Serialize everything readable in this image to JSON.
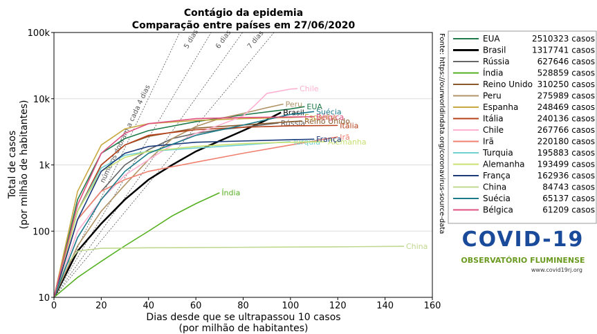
{
  "chart_data": {
    "type": "line",
    "title": [
      "Contágio da epidemia",
      "Comparação entre países em 27/06/2020"
    ],
    "x_label": [
      "Dias desde que se ultrapassou 10 casos",
      "(por milhão de habitantes)"
    ],
    "y_label": [
      "Total de casos",
      "(por milhão de habitantes)"
    ],
    "y_scale": "log",
    "grid": true,
    "xlim": [
      0,
      160
    ],
    "ylim": [
      10,
      100000
    ],
    "xticks": [
      0,
      20,
      40,
      60,
      80,
      100,
      120,
      140,
      160
    ],
    "yticks": [
      10,
      100,
      {
        "value": 1000,
        "label": "1k"
      },
      {
        "value": 10000,
        "label": "10k"
      },
      {
        "value": 100000,
        "label": "100k"
      }
    ],
    "source": "Fonte: https://ourworldindata.org/coronavirus-source-data",
    "doubling_lines": [
      {
        "days": 4,
        "label": "números dobram a cada 4 dias"
      },
      {
        "days": 5,
        "label": "5 dias"
      },
      {
        "days": 6,
        "label": "6 dias"
      },
      {
        "days": 7,
        "label": "7 dias"
      }
    ],
    "series": [
      {
        "name": "EUA",
        "cases": "2510323 casos",
        "color": "#1f7a4a",
        "x": [
          0,
          10,
          20,
          30,
          40,
          60,
          80,
          100,
          106
        ],
        "values": [
          10,
          300,
          1500,
          2500,
          3300,
          4500,
          5700,
          7000,
          7600
        ]
      },
      {
        "name": "Brasil",
        "cases": "1317741 casos",
        "color": "#000000",
        "x": [
          0,
          10,
          20,
          30,
          40,
          50,
          60,
          70,
          80,
          90,
          96
        ],
        "values": [
          10,
          50,
          130,
          300,
          600,
          1000,
          1600,
          2300,
          3300,
          4800,
          6200
        ]
      },
      {
        "name": "Rússia",
        "cases": "627646 casos",
        "color": "#666666",
        "x": [
          0,
          10,
          20,
          30,
          40,
          50,
          60,
          70,
          80,
          90,
          95
        ],
        "values": [
          10,
          150,
          400,
          1000,
          1700,
          2500,
          3000,
          3400,
          3700,
          4100,
          4300
        ]
      },
      {
        "name": "Índia",
        "cases": "528859 casos",
        "color": "#55b020",
        "x": [
          0,
          10,
          20,
          30,
          40,
          50,
          60,
          70
        ],
        "values": [
          10,
          20,
          35,
          60,
          100,
          170,
          260,
          380
        ]
      },
      {
        "name": "Reino Unido",
        "cases": "310250 casos",
        "color": "#8b5a2b",
        "x": [
          0,
          10,
          20,
          30,
          40,
          60,
          80,
          100,
          105
        ],
        "values": [
          10,
          200,
          1000,
          2000,
          2700,
          3600,
          4000,
          4500,
          4600
        ]
      },
      {
        "name": "Peru",
        "cases": "275989 casos",
        "color": "#b09468",
        "x": [
          0,
          10,
          20,
          30,
          40,
          50,
          60,
          70,
          80,
          90,
          97
        ],
        "values": [
          10,
          60,
          200,
          500,
          1200,
          2500,
          3800,
          5000,
          6000,
          7300,
          8300
        ]
      },
      {
        "name": "Espanha",
        "cases": "248469 casos",
        "color": "#c8a840",
        "x": [
          0,
          10,
          20,
          30,
          40,
          60,
          80,
          100,
          105
        ],
        "values": [
          10,
          400,
          2000,
          3500,
          4200,
          4700,
          5000,
          5200,
          5300
        ]
      },
      {
        "name": "Itália",
        "cases": "240136 casos",
        "color": "#b5401a",
        "x": [
          0,
          10,
          20,
          30,
          40,
          60,
          80,
          100,
          120
        ],
        "values": [
          10,
          200,
          1000,
          2000,
          2800,
          3400,
          3700,
          3900,
          3950
        ]
      },
      {
        "name": "Chile",
        "cases": "267766 casos",
        "color": "#ffb0d0",
        "x": [
          0,
          10,
          20,
          30,
          40,
          50,
          60,
          70,
          80,
          85,
          90,
          100,
          103
        ],
        "values": [
          10,
          100,
          300,
          700,
          1200,
          2000,
          3000,
          4000,
          5500,
          8000,
          12000,
          14000,
          14200
        ]
      },
      {
        "name": "Irã",
        "cases": "220180 casos",
        "color": "#f08070",
        "x": [
          0,
          10,
          20,
          30,
          40,
          60,
          80,
          100,
          120
        ],
        "values": [
          10,
          150,
          400,
          600,
          800,
          1100,
          1500,
          2000,
          2650
        ]
      },
      {
        "name": "Turquia",
        "cases": "195883 casos",
        "color": "#70d0d0",
        "x": [
          0,
          10,
          20,
          30,
          40,
          60,
          80,
          100
        ],
        "values": [
          10,
          200,
          900,
          1400,
          1600,
          1800,
          2000,
          2250
        ]
      },
      {
        "name": "Alemanha",
        "cases": "193499 casos",
        "color": "#c8e070",
        "x": [
          0,
          10,
          20,
          30,
          40,
          60,
          80,
          100,
          115
        ],
        "values": [
          10,
          200,
          800,
          1300,
          1600,
          1900,
          2100,
          2200,
          2250
        ]
      },
      {
        "name": "França",
        "cases": "162936 casos",
        "color": "#1a3a7a",
        "x": [
          0,
          10,
          20,
          30,
          40,
          60,
          80,
          100,
          110
        ],
        "values": [
          10,
          150,
          800,
          1500,
          1900,
          2200,
          2300,
          2400,
          2450
        ]
      },
      {
        "name": "China",
        "cases": "84743 casos",
        "color": "#c0d890",
        "x": [
          0,
          5,
          10,
          20,
          40,
          80,
          120,
          148
        ],
        "values": [
          10,
          30,
          50,
          55,
          56,
          57,
          58,
          59
        ]
      },
      {
        "name": "Suécia",
        "cases": "65137 casos",
        "color": "#1a7a8a",
        "x": [
          0,
          10,
          20,
          30,
          40,
          60,
          80,
          100,
          110
        ],
        "values": [
          10,
          80,
          300,
          800,
          1500,
          2800,
          4000,
          5800,
          6400
        ]
      },
      {
        "name": "Bélgica",
        "cases": "61209 casos",
        "color": "#e05080",
        "x": [
          0,
          10,
          20,
          30,
          40,
          60,
          80,
          100,
          110
        ],
        "values": [
          10,
          250,
          1500,
          3000,
          4200,
          5000,
          5200,
          5300,
          5350
        ]
      }
    ]
  },
  "logo": {
    "title": "COVID-19",
    "subtitle": "OBSERVATÓRIO FLUMINENSE",
    "url": "www.covid19rj.org"
  }
}
